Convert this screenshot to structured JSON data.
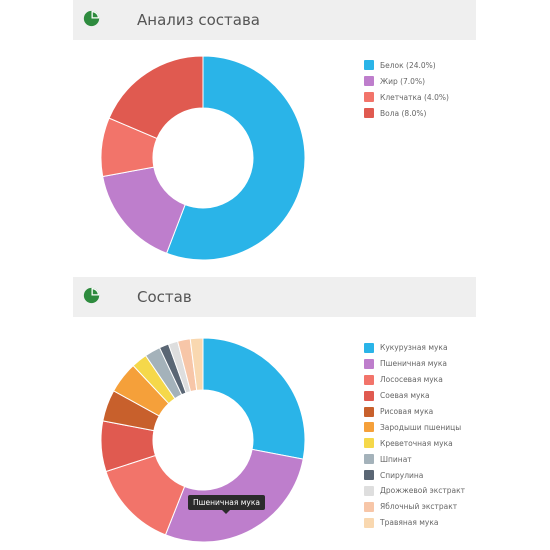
{
  "composition_panel": {
    "title": "Анализ состава",
    "icon": "pie-chart-icon",
    "legend": [
      {
        "label": "Белок (24.0%)",
        "color": "#2ab4e8"
      },
      {
        "label": "Жир (7.0%)",
        "color": "#be7ecc"
      },
      {
        "label": "Клетчатка (4.0%)",
        "color": "#f2746a"
      },
      {
        "label": "Вола (8.0%)",
        "color": "#e05a50"
      }
    ]
  },
  "ingredients_panel": {
    "title": "Состав",
    "icon": "pie-chart-icon",
    "tooltip": "Пшеничная мука",
    "legend": [
      {
        "label": "Кукурузная мука",
        "color": "#2ab4e8"
      },
      {
        "label": "Пшеничная мука",
        "color": "#be7ecc"
      },
      {
        "label": "Лососевая мука",
        "color": "#f2746a"
      },
      {
        "label": "Соевая мука",
        "color": "#e05a50"
      },
      {
        "label": "Рисовая мука",
        "color": "#c8602c"
      },
      {
        "label": "Зародыши пшеницы",
        "color": "#f5a03a"
      },
      {
        "label": "Креветочная мука",
        "color": "#f5d84a"
      },
      {
        "label": "Шпинат",
        "color": "#a4b2ba"
      },
      {
        "label": "Спирулина",
        "color": "#5a6674"
      },
      {
        "label": "Дрожжевой экстракт",
        "color": "#dedede"
      },
      {
        "label": "Яблочный экстракт",
        "color": "#f7c6a8"
      },
      {
        "label": "Травяная мука",
        "color": "#f9d8b0"
      }
    ]
  },
  "chart_data": [
    {
      "type": "pie",
      "title": "Анализ состава",
      "categories": [
        "Белок (24.0%)",
        "Жир (7.0%)",
        "Клетчатка (4.0%)",
        "Вола (8.0%)"
      ],
      "values": [
        24.0,
        7.0,
        4.0,
        8.0
      ],
      "colors": [
        "#2ab4e8",
        "#be7ecc",
        "#f2746a",
        "#e05a50"
      ]
    },
    {
      "type": "pie",
      "title": "Состав",
      "categories": [
        "Кукурузная мука",
        "Пшеничная мука",
        "Лососевая мука",
        "Соевая мука",
        "Рисовая мука",
        "Зародыши пшеницы",
        "Креветочная мука",
        "Шпинат",
        "Спирулина",
        "Дрожжевой экстракт",
        "Яблочный экстракт",
        "Травяная мука"
      ],
      "values": [
        28,
        28,
        14,
        8,
        5,
        5,
        2.5,
        2.5,
        1.5,
        1.5,
        2,
        2
      ],
      "colors": [
        "#2ab4e8",
        "#be7ecc",
        "#f2746a",
        "#e05a50",
        "#c8602c",
        "#f5a03a",
        "#f5d84a",
        "#a4b2ba",
        "#5a6674",
        "#dedede",
        "#f7c6a8",
        "#f9d8b0"
      ]
    }
  ]
}
